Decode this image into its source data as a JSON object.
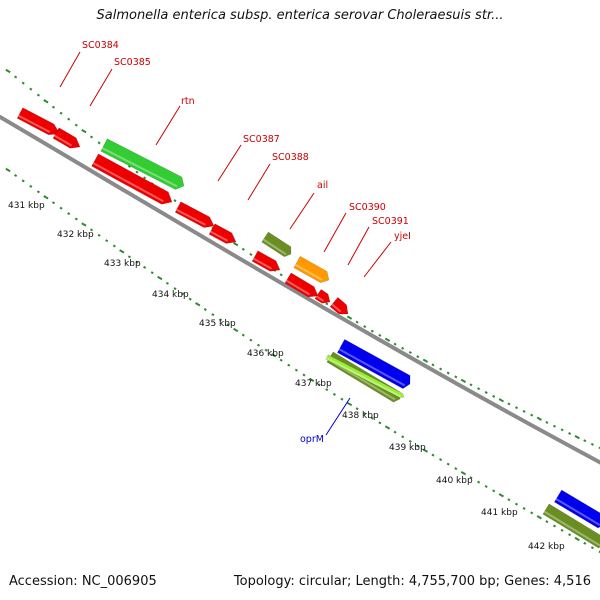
{
  "title": "Salmonella enterica subsp. enterica serovar Choleraesuis str...",
  "footer": {
    "accession": "Accession: NC_006905",
    "summary": "Topology: circular; Length: 4,755,700 bp; Genes: 4,516"
  },
  "ruler_labels": [
    "431 kbp",
    "432 kbp",
    "433 kbp",
    "434 kbp",
    "435 kbp",
    "436 kbp",
    "437 kbp",
    "438 kbp",
    "439 kbp",
    "440 kbp",
    "441 kbp",
    "442 kbp"
  ],
  "colors": {
    "backbone": "#8a8a8a",
    "tick": "#2e8b2e",
    "label_red": "#cc0000",
    "label_blue": "#0000cc",
    "gene_red": "#ee0000",
    "gene_green": "#33cc33",
    "gene_olive": "#6b8e23",
    "gene_orange": "#ff9900",
    "gene_blue": "#0000ee",
    "gene_lime": "#99ee33"
  },
  "gene_labels": [
    {
      "text": "SC0384",
      "color": "label_red"
    },
    {
      "text": "SC0385",
      "color": "label_red"
    },
    {
      "text": "rtn",
      "color": "label_red"
    },
    {
      "text": "SC0387",
      "color": "label_red"
    },
    {
      "text": "SC0388",
      "color": "label_red"
    },
    {
      "text": "ail",
      "color": "label_red"
    },
    {
      "text": "SC0390",
      "color": "label_red"
    },
    {
      "text": "SC0391",
      "color": "label_red"
    },
    {
      "text": "yjeI",
      "color": "label_red"
    },
    {
      "text": "oprM",
      "color": "label_blue"
    }
  ]
}
